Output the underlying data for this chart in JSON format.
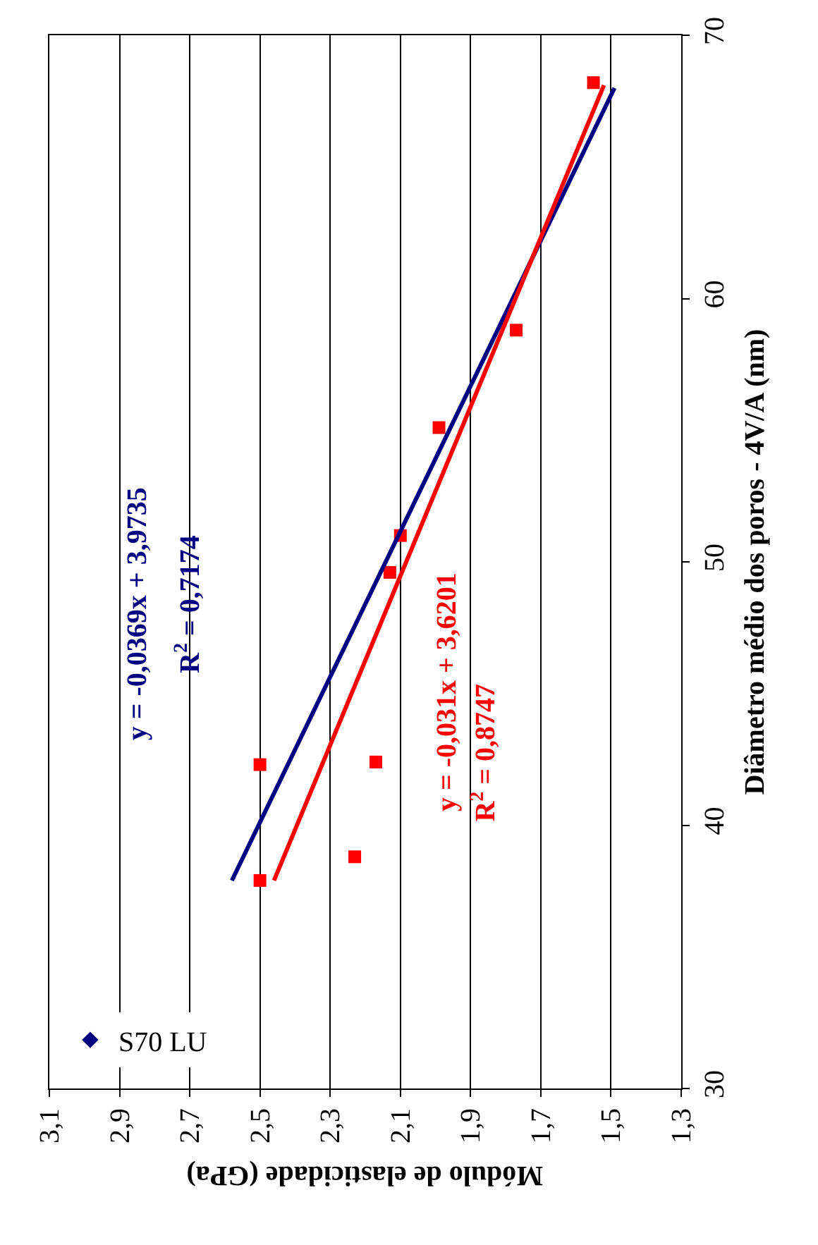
{
  "chart_data": {
    "type": "scatter",
    "xlabel": "Módulo de elasticidade (GPa)",
    "ylabel": "Diâmetro médio dos poros - 4V/A (nm)",
    "xlim": [
      3.1,
      1.3
    ],
    "xticks": [
      {
        "value": 3.1,
        "label": "3,1"
      },
      {
        "value": 2.9,
        "label": "2,9"
      },
      {
        "value": 2.7,
        "label": "2,7"
      },
      {
        "value": 2.5,
        "label": "2,5"
      },
      {
        "value": 2.3,
        "label": "2,3"
      },
      {
        "value": 2.1,
        "label": "2,1"
      },
      {
        "value": 1.9,
        "label": "1,9"
      },
      {
        "value": 1.7,
        "label": "1,7"
      },
      {
        "value": 1.5,
        "label": "1,5"
      },
      {
        "value": 1.3,
        "label": "1,3"
      }
    ],
    "ylim": [
      30,
      70
    ],
    "yticks": [
      30,
      40,
      50,
      60,
      70
    ],
    "grid": "x",
    "legend": "bottom left",
    "series": [
      {
        "name": "S70 LU",
        "color": "#000080",
        "marker": "diamond"
      },
      {
        "color": "#ff0000",
        "marker": "square",
        "x": [
          2.5,
          2.23,
          2.5,
          2.17,
          2.13,
          2.1,
          1.99,
          1.77,
          1.55
        ],
        "values": [
          37.9,
          38.8,
          42.3,
          42.4,
          49.6,
          51.0,
          55.1,
          58.8,
          68.2
        ]
      },
      {
        "type": "line",
        "color": "#000080",
        "marker": "none",
        "x": [
          2.58,
          1.49
        ],
        "values": [
          37.9,
          68.0
        ]
      },
      {
        "type": "line",
        "color": "#ff0000",
        "marker": "none",
        "x": [
          2.46,
          1.52
        ],
        "values": [
          37.9,
          68.1
        ]
      }
    ],
    "annotations": [
      "y = -0,0369x + 3,9735",
      "R$^{2}$ = 0,7174",
      "y = -0,031x + 3,6201",
      "R$^{2}$ = 0,8747"
    ]
  }
}
